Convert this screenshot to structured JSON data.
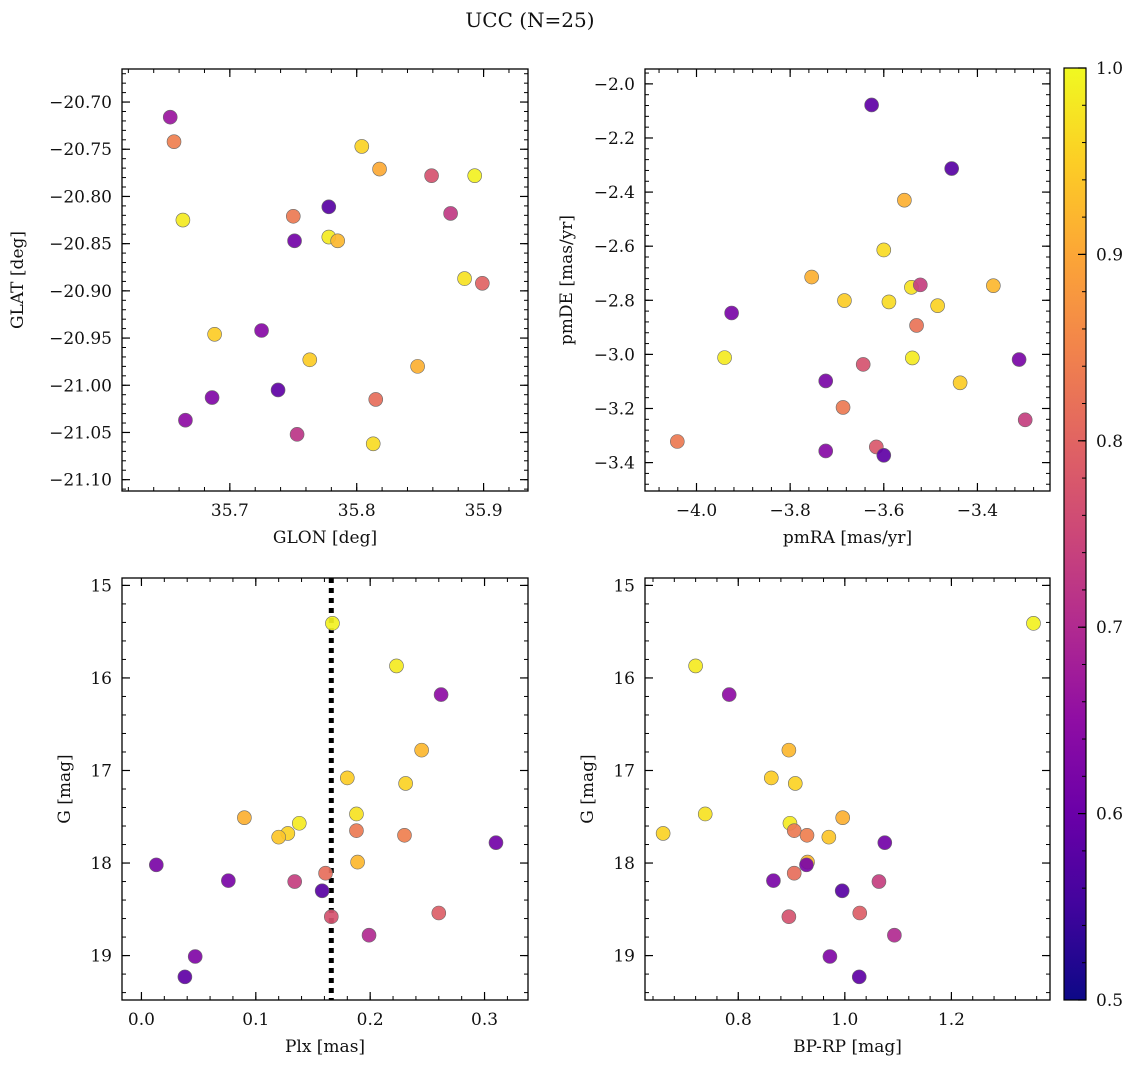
{
  "title": "UCC (N=25)",
  "colorbar": {
    "min": 0.5,
    "max": 1.0,
    "ticks": [
      "0.5",
      "0.6",
      "0.7",
      "0.8",
      "0.9",
      "1.0"
    ],
    "colormap": "plasma"
  },
  "chart_data": [
    {
      "type": "scatter",
      "xlabel": "GLON [deg]",
      "ylabel": "GLAT [deg]",
      "xlim": [
        35.615,
        35.935
      ],
      "ylim": [
        -21.112,
        -20.665
      ],
      "xticks": [
        "35.7",
        "35.8",
        "35.9"
      ],
      "yticks": [
        "−20.70",
        "−20.75",
        "−20.80",
        "−20.85",
        "−20.90",
        "−20.95",
        "−21.00",
        "−21.05",
        "−21.10"
      ],
      "points": [
        {
          "x": 35.653,
          "y": -20.716,
          "c": 0.62
        },
        {
          "x": 35.656,
          "y": -20.742,
          "c": 0.82
        },
        {
          "x": 35.663,
          "y": -20.825,
          "c": 0.98
        },
        {
          "x": 35.665,
          "y": -21.037,
          "c": 0.6
        },
        {
          "x": 35.686,
          "y": -21.013,
          "c": 0.58
        },
        {
          "x": 35.688,
          "y": -20.946,
          "c": 0.94
        },
        {
          "x": 35.725,
          "y": -20.942,
          "c": 0.59
        },
        {
          "x": 35.738,
          "y": -21.005,
          "c": 0.53
        },
        {
          "x": 35.75,
          "y": -20.821,
          "c": 0.81
        },
        {
          "x": 35.751,
          "y": -20.847,
          "c": 0.56
        },
        {
          "x": 35.753,
          "y": -21.052,
          "c": 0.68
        },
        {
          "x": 35.763,
          "y": -20.973,
          "c": 0.94
        },
        {
          "x": 35.778,
          "y": -20.811,
          "c": 0.52
        },
        {
          "x": 35.778,
          "y": -20.843,
          "c": 0.98
        },
        {
          "x": 35.785,
          "y": -20.847,
          "c": 0.91
        },
        {
          "x": 35.804,
          "y": -20.747,
          "c": 0.95
        },
        {
          "x": 35.813,
          "y": -21.062,
          "c": 0.96
        },
        {
          "x": 35.815,
          "y": -21.015,
          "c": 0.79
        },
        {
          "x": 35.818,
          "y": -20.771,
          "c": 0.89
        },
        {
          "x": 35.848,
          "y": -20.98,
          "c": 0.9
        },
        {
          "x": 35.859,
          "y": -20.778,
          "c": 0.74
        },
        {
          "x": 35.874,
          "y": -20.818,
          "c": 0.69
        },
        {
          "x": 35.885,
          "y": -20.887,
          "c": 0.97
        },
        {
          "x": 35.893,
          "y": -20.778,
          "c": 0.99
        },
        {
          "x": 35.899,
          "y": -20.892,
          "c": 0.77
        }
      ]
    },
    {
      "type": "scatter",
      "xlabel": "pmRA [mas/yr]",
      "ylabel": "pmDE [mas/yr]",
      "xlim": [
        -4.11,
        -3.245
      ],
      "ylim": [
        -3.505,
        -1.945
      ],
      "xticks": [
        "−4.0",
        "−3.8",
        "−3.6",
        "−3.4"
      ],
      "yticks": [
        "−2.0",
        "−2.2",
        "−2.4",
        "−2.6",
        "−2.8",
        "−3.0",
        "−3.2",
        "−3.4"
      ],
      "points": [
        {
          "x": -3.626,
          "y": -2.078,
          "c": 0.53
        },
        {
          "x": -3.455,
          "y": -2.313,
          "c": 0.52
        },
        {
          "x": -3.556,
          "y": -2.43,
          "c": 0.9
        },
        {
          "x": -3.6,
          "y": -2.614,
          "c": 0.96
        },
        {
          "x": -3.754,
          "y": -2.714,
          "c": 0.9
        },
        {
          "x": -3.541,
          "y": -2.752,
          "c": 0.97
        },
        {
          "x": -3.522,
          "y": -2.743,
          "c": 0.7
        },
        {
          "x": -3.366,
          "y": -2.746,
          "c": 0.91
        },
        {
          "x": -3.684,
          "y": -2.801,
          "c": 0.94
        },
        {
          "x": -3.589,
          "y": -2.806,
          "c": 0.96
        },
        {
          "x": -3.485,
          "y": -2.82,
          "c": 0.95
        },
        {
          "x": -3.925,
          "y": -2.847,
          "c": 0.57
        },
        {
          "x": -3.53,
          "y": -2.893,
          "c": 0.8
        },
        {
          "x": -3.94,
          "y": -3.012,
          "c": 0.98
        },
        {
          "x": -3.539,
          "y": -3.013,
          "c": 0.98
        },
        {
          "x": -3.311,
          "y": -3.019,
          "c": 0.57
        },
        {
          "x": -3.644,
          "y": -3.037,
          "c": 0.74
        },
        {
          "x": -3.724,
          "y": -3.098,
          "c": 0.57
        },
        {
          "x": -3.437,
          "y": -3.105,
          "c": 0.94
        },
        {
          "x": -3.687,
          "y": -3.196,
          "c": 0.81
        },
        {
          "x": -3.298,
          "y": -3.242,
          "c": 0.7
        },
        {
          "x": -4.041,
          "y": -3.322,
          "c": 0.81
        },
        {
          "x": -3.616,
          "y": -3.342,
          "c": 0.75
        },
        {
          "x": -3.724,
          "y": -3.357,
          "c": 0.59
        },
        {
          "x": -3.6,
          "y": -3.373,
          "c": 0.53
        }
      ]
    },
    {
      "type": "scatter",
      "xlabel": "Plx [mas]",
      "ylabel": "G [mag]",
      "xlim": [
        -0.017,
        0.338
      ],
      "ylim": [
        19.48,
        14.92
      ],
      "xticks": [
        "0.0",
        "0.1",
        "0.2",
        "0.3"
      ],
      "yticks": [
        "15",
        "16",
        "17",
        "18",
        "19"
      ],
      "reference_line": {
        "x": 0.166,
        "style": "dotted",
        "color": "#000000"
      },
      "points": [
        {
          "x": 0.167,
          "y": 15.41,
          "c": 0.99
        },
        {
          "x": 0.223,
          "y": 15.87,
          "c": 0.98
        },
        {
          "x": 0.262,
          "y": 16.18,
          "c": 0.6
        },
        {
          "x": 0.245,
          "y": 16.78,
          "c": 0.91
        },
        {
          "x": 0.18,
          "y": 17.08,
          "c": 0.94
        },
        {
          "x": 0.231,
          "y": 17.14,
          "c": 0.95
        },
        {
          "x": 0.188,
          "y": 17.47,
          "c": 0.97
        },
        {
          "x": 0.09,
          "y": 17.51,
          "c": 0.9
        },
        {
          "x": 0.138,
          "y": 17.57,
          "c": 0.98
        },
        {
          "x": 0.188,
          "y": 17.65,
          "c": 0.81
        },
        {
          "x": 0.128,
          "y": 17.68,
          "c": 0.95
        },
        {
          "x": 0.23,
          "y": 17.7,
          "c": 0.82
        },
        {
          "x": 0.12,
          "y": 17.72,
          "c": 0.93
        },
        {
          "x": 0.31,
          "y": 17.78,
          "c": 0.56
        },
        {
          "x": 0.189,
          "y": 17.99,
          "c": 0.91
        },
        {
          "x": 0.013,
          "y": 18.02,
          "c": 0.57
        },
        {
          "x": 0.161,
          "y": 18.11,
          "c": 0.79
        },
        {
          "x": 0.076,
          "y": 18.19,
          "c": 0.57
        },
        {
          "x": 0.134,
          "y": 18.2,
          "c": 0.7
        },
        {
          "x": 0.158,
          "y": 18.3,
          "c": 0.52
        },
        {
          "x": 0.26,
          "y": 18.54,
          "c": 0.76
        },
        {
          "x": 0.166,
          "y": 18.58,
          "c": 0.74
        },
        {
          "x": 0.199,
          "y": 18.78,
          "c": 0.66
        },
        {
          "x": 0.047,
          "y": 19.01,
          "c": 0.58
        },
        {
          "x": 0.038,
          "y": 19.23,
          "c": 0.53
        }
      ]
    },
    {
      "type": "scatter",
      "xlabel": "BP-RP [mag]",
      "ylabel": "G [mag]",
      "xlim": [
        0.625,
        1.385
      ],
      "ylim": [
        19.48,
        14.92
      ],
      "xticks": [
        "0.8",
        "1.0",
        "1.2"
      ],
      "yticks": [
        "15",
        "16",
        "17",
        "18",
        "19"
      ],
      "points": [
        {
          "x": 1.354,
          "y": 15.41,
          "c": 0.99
        },
        {
          "x": 0.72,
          "y": 15.87,
          "c": 0.98
        },
        {
          "x": 0.783,
          "y": 16.18,
          "c": 0.6
        },
        {
          "x": 0.895,
          "y": 16.78,
          "c": 0.91
        },
        {
          "x": 0.862,
          "y": 17.08,
          "c": 0.94
        },
        {
          "x": 0.907,
          "y": 17.14,
          "c": 0.95
        },
        {
          "x": 0.738,
          "y": 17.47,
          "c": 0.97
        },
        {
          "x": 0.996,
          "y": 17.51,
          "c": 0.9
        },
        {
          "x": 0.897,
          "y": 17.57,
          "c": 0.98
        },
        {
          "x": 0.905,
          "y": 17.65,
          "c": 0.81
        },
        {
          "x": 0.659,
          "y": 17.68,
          "c": 0.95
        },
        {
          "x": 0.929,
          "y": 17.7,
          "c": 0.82
        },
        {
          "x": 0.97,
          "y": 17.72,
          "c": 0.93
        },
        {
          "x": 1.075,
          "y": 17.78,
          "c": 0.56
        },
        {
          "x": 0.93,
          "y": 17.99,
          "c": 0.91
        },
        {
          "x": 0.928,
          "y": 18.02,
          "c": 0.57
        },
        {
          "x": 0.905,
          "y": 18.11,
          "c": 0.79
        },
        {
          "x": 0.866,
          "y": 18.19,
          "c": 0.57
        },
        {
          "x": 1.064,
          "y": 18.2,
          "c": 0.7
        },
        {
          "x": 0.995,
          "y": 18.3,
          "c": 0.52
        },
        {
          "x": 1.028,
          "y": 18.54,
          "c": 0.76
        },
        {
          "x": 0.895,
          "y": 18.58,
          "c": 0.74
        },
        {
          "x": 1.093,
          "y": 18.78,
          "c": 0.66
        },
        {
          "x": 0.972,
          "y": 19.01,
          "c": 0.58
        },
        {
          "x": 1.027,
          "y": 19.23,
          "c": 0.53
        }
      ]
    }
  ]
}
